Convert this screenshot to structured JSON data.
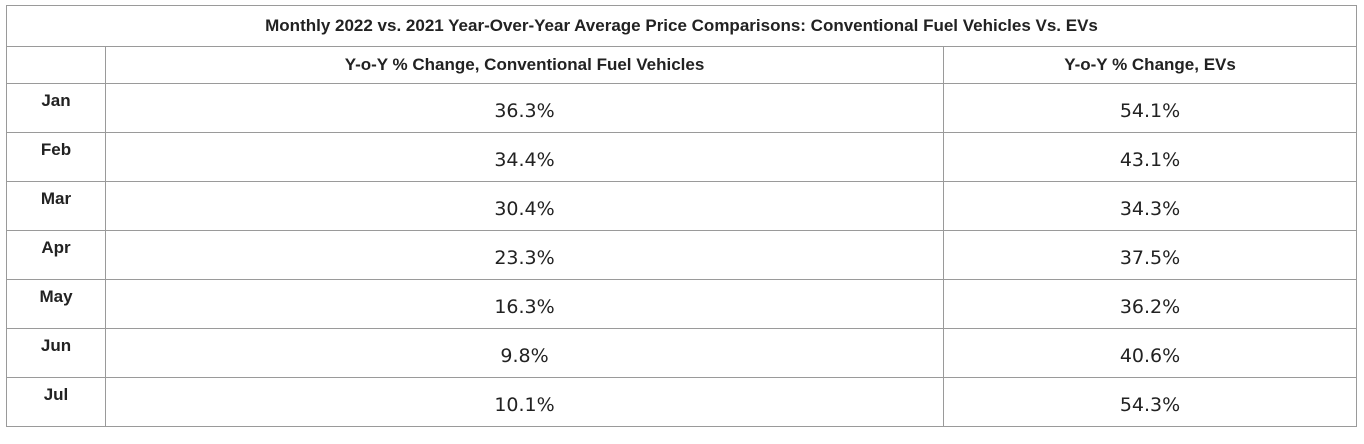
{
  "table": {
    "title": "Monthly 2022 vs. 2021 Year-Over-Year Average Price Comparisons: Conventional Fuel Vehicles Vs. EVs",
    "columns": [
      "",
      "Y-o-Y % Change, Conventional Fuel Vehicles",
      "Y-o-Y % Change, EVs"
    ],
    "rows": [
      {
        "month": "Jan",
        "conventional": "36.3%",
        "ev": "54.1%"
      },
      {
        "month": "Feb",
        "conventional": "34.4%",
        "ev": "43.1%"
      },
      {
        "month": "Mar",
        "conventional": "30.4%",
        "ev": "34.3%"
      },
      {
        "month": "Apr",
        "conventional": "23.3%",
        "ev": "37.5%"
      },
      {
        "month": "May",
        "conventional": "16.3%",
        "ev": "36.2%"
      },
      {
        "month": "Jun",
        "conventional": "9.8%",
        "ev": "40.6%"
      },
      {
        "month": "Jul",
        "conventional": "10.1%",
        "ev": "54.3%"
      }
    ]
  }
}
